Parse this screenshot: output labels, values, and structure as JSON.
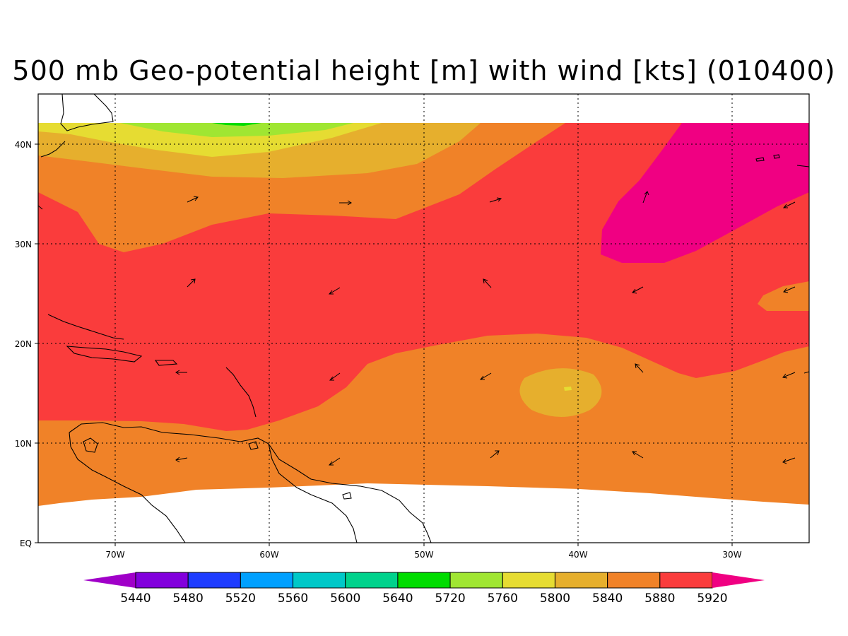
{
  "title": "500 mb Geo-potential height [m] with wind [kts] (010400)",
  "axes": {
    "x_ticks": [
      "70W",
      "60W",
      "50W",
      "40W",
      "30W"
    ],
    "y_ticks": [
      "EQ",
      "10N",
      "20N",
      "30N",
      "40N"
    ]
  },
  "colorbar": {
    "levels": [
      "5440",
      "5480",
      "5520",
      "5560",
      "5600",
      "5640",
      "5720",
      "5760",
      "5800",
      "5840",
      "5880",
      "5920"
    ],
    "colors": [
      "#a000c8",
      "#8200dc",
      "#1e3cff",
      "#00a0ff",
      "#00c8c8",
      "#00d28c",
      "#00dc00",
      "#a0e632",
      "#e6dc32",
      "#e6af2d",
      "#f08228",
      "#fa3c3c",
      "#f00082"
    ]
  },
  "chart_data": {
    "type": "heatmap",
    "title": "500 mb Geo-potential height [m] with wind [kts] (010400)",
    "xlabel": "",
    "ylabel": "",
    "xlim": [
      "75W",
      "25W"
    ],
    "ylim": [
      "0",
      "45N"
    ],
    "x_ticks": [
      "70W",
      "60W",
      "50W",
      "40W",
      "30W"
    ],
    "y_ticks": [
      "EQ",
      "10N",
      "20N",
      "30N",
      "40N"
    ],
    "grid": true,
    "contour_levels": [
      5440,
      5480,
      5520,
      5560,
      5600,
      5640,
      5720,
      5760,
      5800,
      5840,
      5880,
      5920
    ],
    "colors": [
      "#a000c8",
      "#8200dc",
      "#1e3cff",
      "#00a0ff",
      "#00c8c8",
      "#00d28c",
      "#00dc00",
      "#a0e632",
      "#e6dc32",
      "#e6af2d",
      "#f08228",
      "#fa3c3c",
      "#f00082"
    ]
  }
}
